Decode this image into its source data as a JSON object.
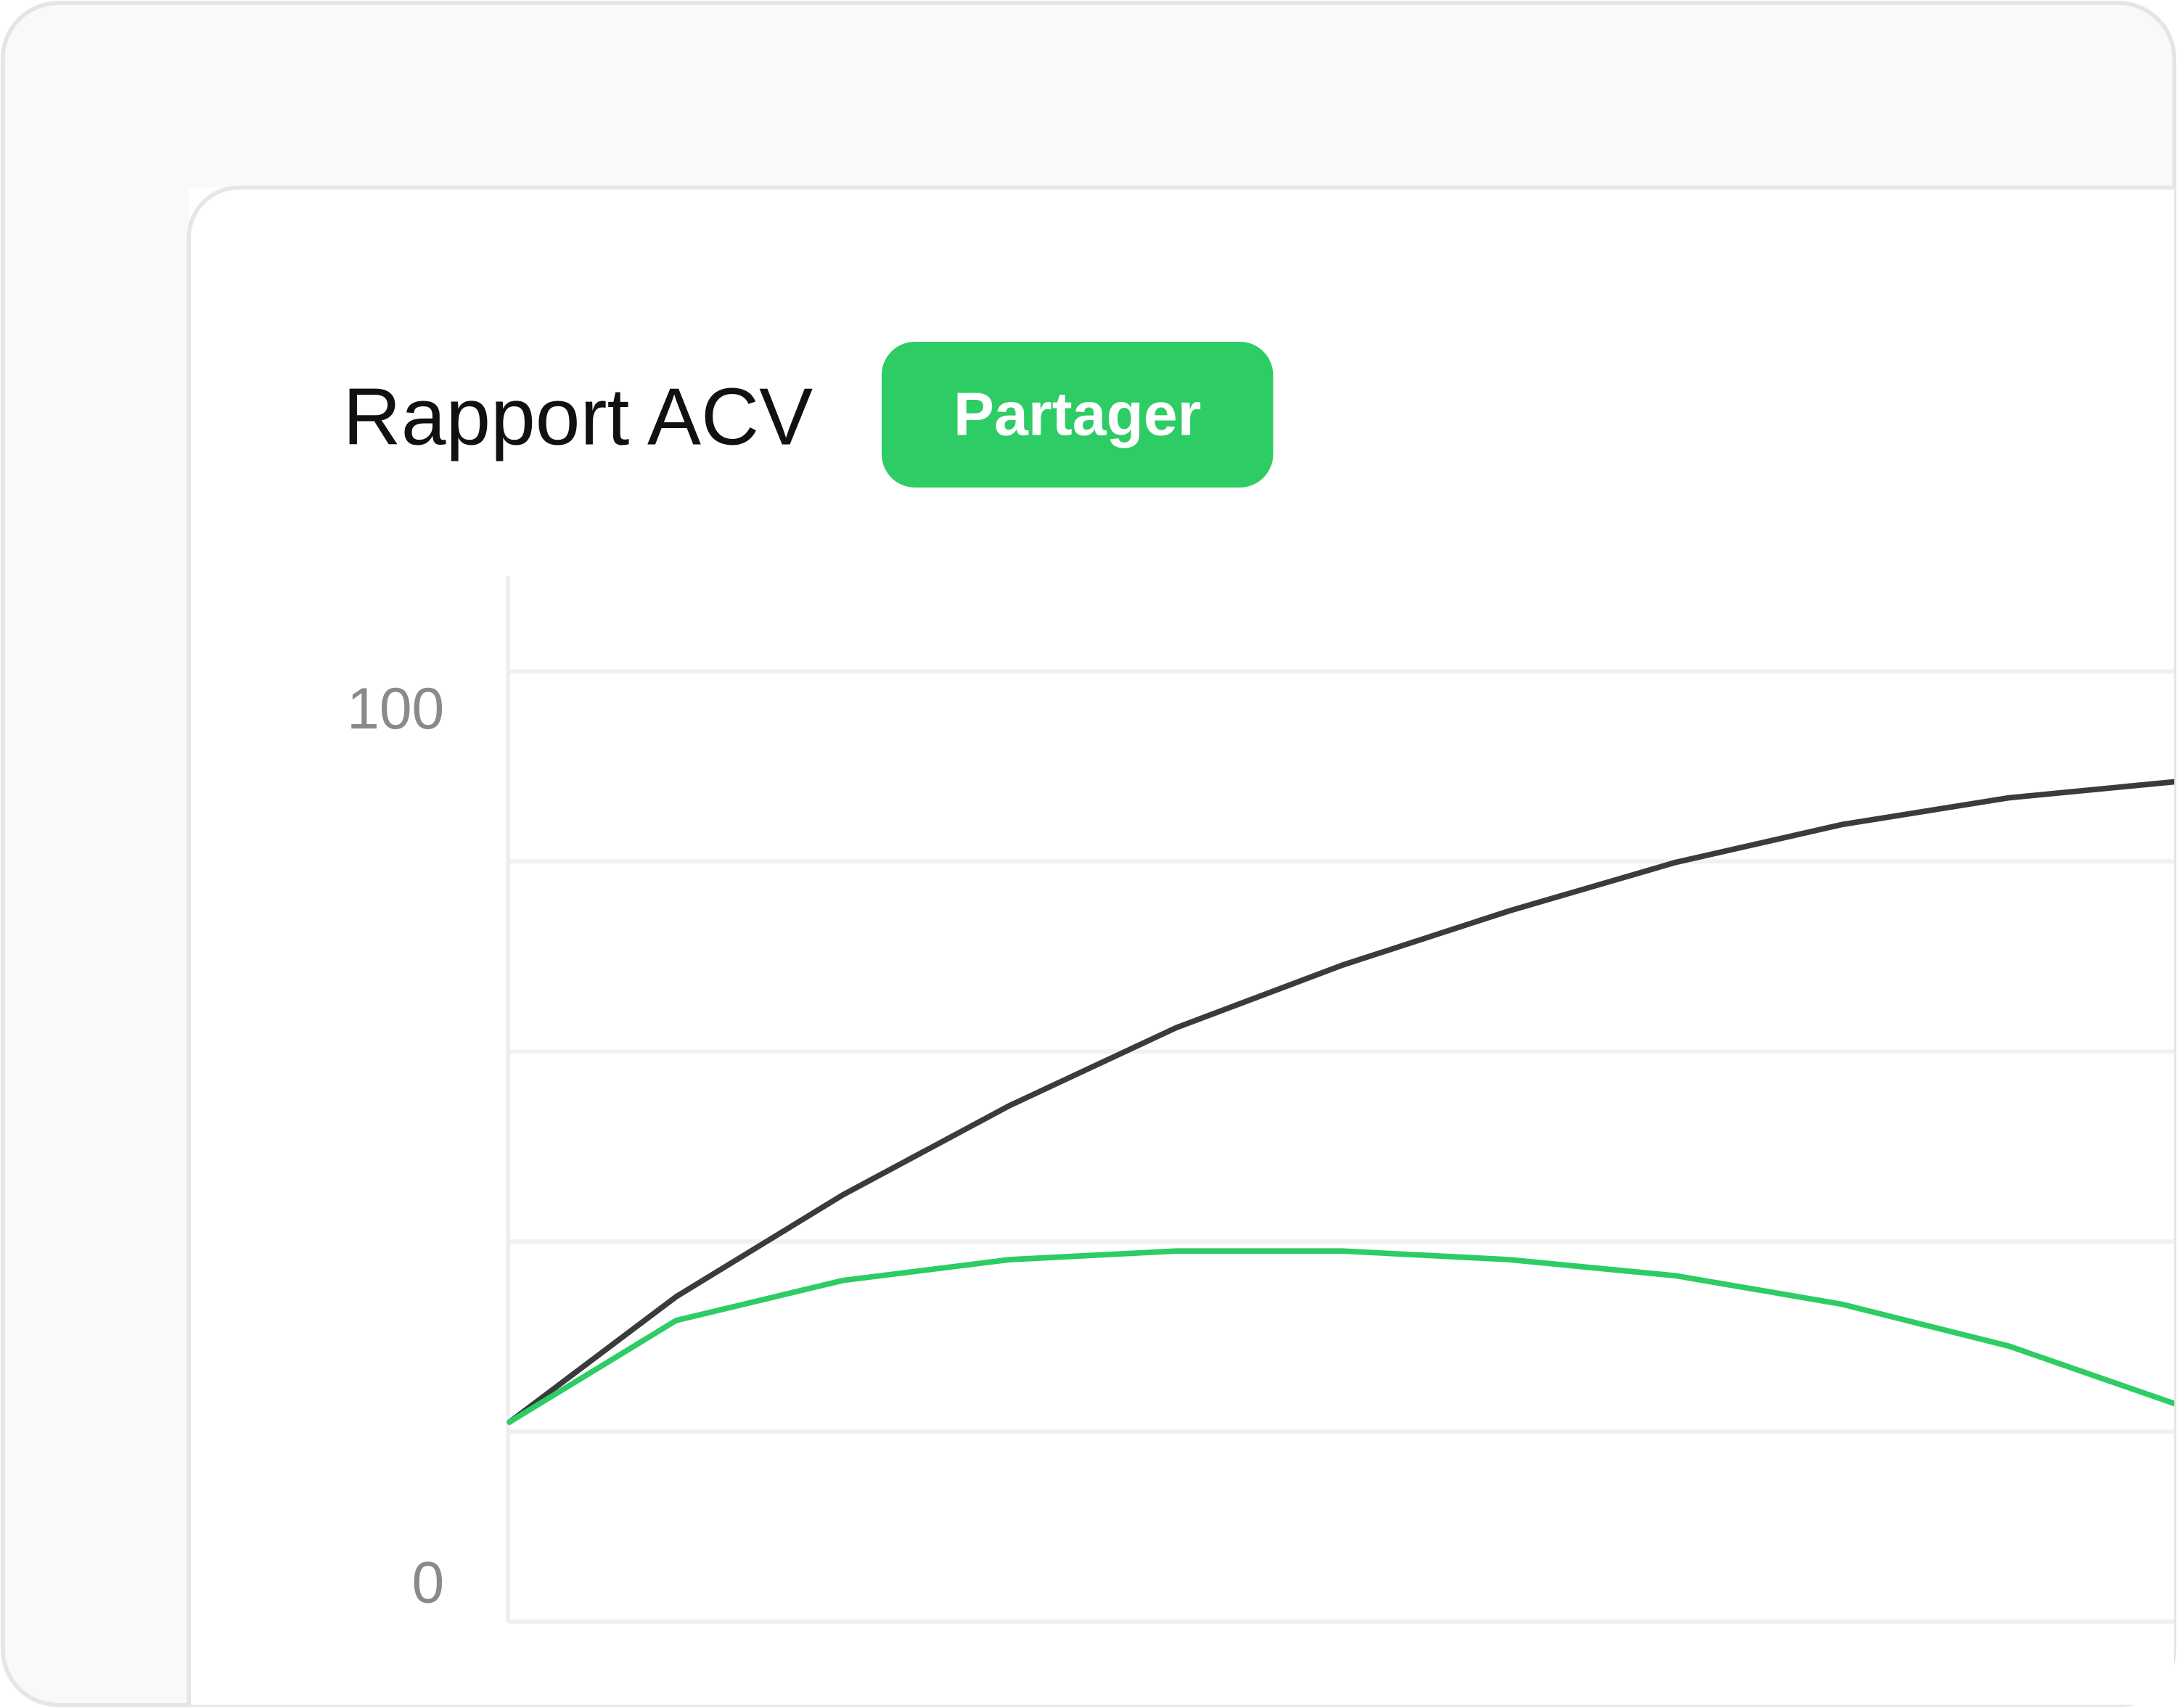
{
  "chart_data": {
    "type": "line",
    "title": "Rapport ACV",
    "x": [
      0,
      1,
      2,
      3,
      4,
      5,
      6,
      7,
      8,
      9,
      10
    ],
    "xlim": [
      0,
      10
    ],
    "series": [
      {
        "color": "#3a3b3d",
        "values": [
          21,
          34.2,
          44.9,
          54.3,
          62.5,
          69.1,
          74.8,
          79.9,
          83.9,
          86.7,
          88.4
        ]
      },
      {
        "color": "#2ecc64",
        "values": [
          21,
          31.7,
          35.9,
          38.1,
          39,
          39,
          38.1,
          36.4,
          33.4,
          29,
          22.9
        ]
      }
    ],
    "ylim": [
      0,
      110
    ],
    "yticks": [
      0,
      100
    ],
    "minor_yticks": [
      20,
      40,
      60,
      80
    ],
    "grid": true
  },
  "actions": [
    {
      "label": "Partager",
      "color": "#2ecc64"
    }
  ]
}
